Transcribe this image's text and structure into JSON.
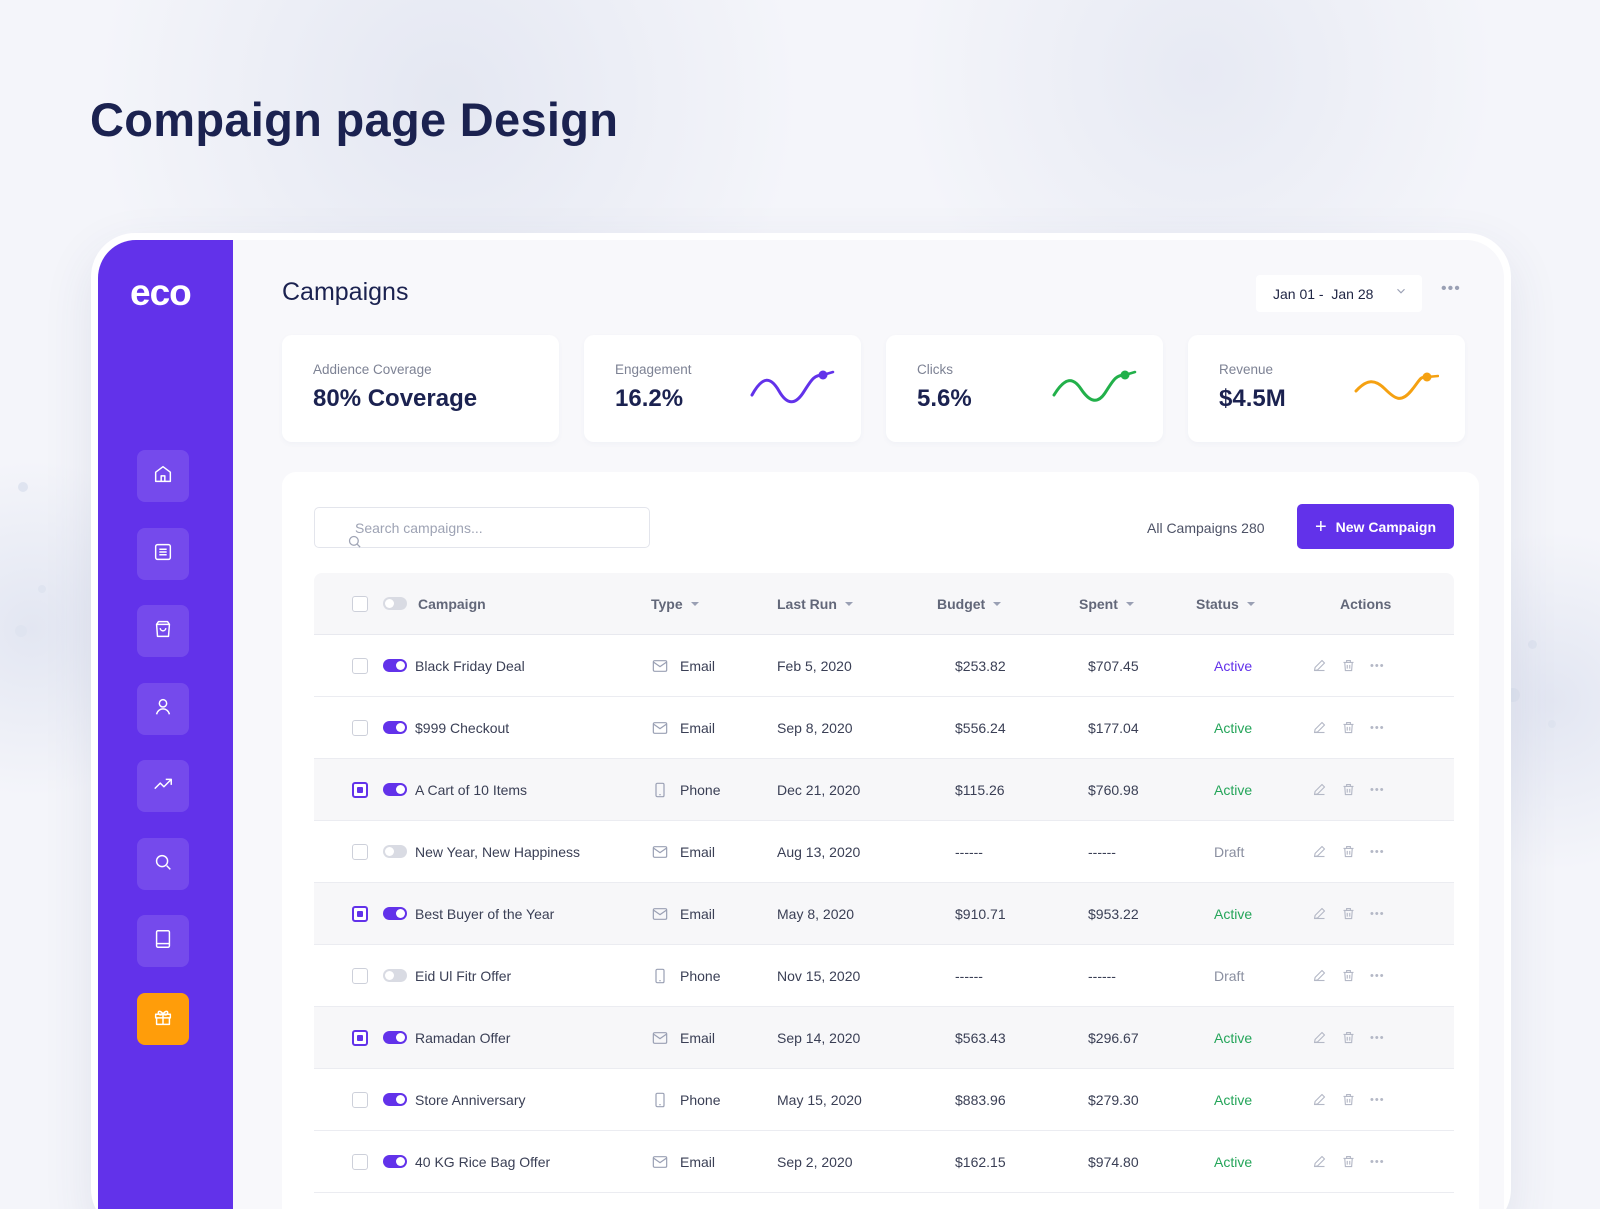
{
  "heading": "Compaign page Design",
  "sidebar": {
    "logo": "eco",
    "items": [
      {
        "name": "home",
        "icon": "home-icon"
      },
      {
        "name": "documents",
        "icon": "document-icon"
      },
      {
        "name": "shop",
        "icon": "shopping-bag-icon"
      },
      {
        "name": "users",
        "icon": "user-icon"
      },
      {
        "name": "analytics",
        "icon": "trending-up-icon"
      },
      {
        "name": "search",
        "icon": "search-icon"
      },
      {
        "name": "book",
        "icon": "book-icon"
      },
      {
        "name": "campaigns",
        "icon": "gift-icon",
        "active": true
      }
    ]
  },
  "main": {
    "title": "Campaigns",
    "date_range": "Jan 01 -  Jan 28",
    "stats": [
      {
        "label": "Addience Coverage",
        "value": "80% Coverage"
      },
      {
        "label": "Engagement",
        "value": "16.2%",
        "color": "#6232ea"
      },
      {
        "label": "Clicks",
        "value": "5.6%",
        "color": "#22b04a"
      },
      {
        "label": "Revenue",
        "value": "$4.5M",
        "color": "#f5a111"
      }
    ],
    "search": {
      "placeholder": "Search campaigns..."
    },
    "all_campaigns": "All Campaigns 280",
    "new_button": "New Campaign",
    "table": {
      "columns": [
        "Campaign",
        "Type",
        "Last Run",
        "Budget",
        "Spent",
        "Status",
        "Actions"
      ],
      "rows": [
        {
          "name": "Black Friday Deal",
          "type": "Email",
          "last_run": "Feb 5, 2020",
          "budget": "$253.82",
          "spent": "$707.45",
          "status": "Active",
          "checked": false,
          "enabled": true,
          "selected": false
        },
        {
          "name": "$999 Checkout",
          "type": "Email",
          "last_run": "Sep 8, 2020",
          "budget": "$556.24",
          "spent": "$177.04",
          "status": "Active",
          "checked": false,
          "enabled": true,
          "selected": false
        },
        {
          "name": "A Cart of 10 Items",
          "type": "Phone",
          "last_run": "Dec 21, 2020",
          "budget": "$115.26",
          "spent": "$760.98",
          "status": "Active",
          "checked": true,
          "enabled": true,
          "selected": true
        },
        {
          "name": "New Year, New Happiness",
          "type": "Email",
          "last_run": "Aug 13, 2020",
          "budget": "------",
          "spent": "------",
          "status": "Draft",
          "checked": false,
          "enabled": false,
          "selected": false
        },
        {
          "name": "Best Buyer of the Year",
          "type": "Email",
          "last_run": "May 8, 2020",
          "budget": "$910.71",
          "spent": "$953.22",
          "status": "Active",
          "checked": true,
          "enabled": true,
          "selected": true
        },
        {
          "name": "Eid Ul Fitr Offer",
          "type": "Phone",
          "last_run": "Nov 15, 2020",
          "budget": "------",
          "spent": "------",
          "status": "Draft",
          "checked": false,
          "enabled": false,
          "selected": false
        },
        {
          "name": "Ramadan Offer",
          "type": "Email",
          "last_run": "Sep 14, 2020",
          "budget": "$563.43",
          "spent": "$296.67",
          "status": "Active",
          "checked": true,
          "enabled": true,
          "selected": true
        },
        {
          "name": "Store Anniversary",
          "type": "Phone",
          "last_run": "May 15, 2020",
          "budget": "$883.96",
          "spent": "$279.30",
          "status": "Active",
          "checked": false,
          "enabled": true,
          "selected": false
        },
        {
          "name": "40 KG Rice Bag Offer",
          "type": "Email",
          "last_run": "Sep 2, 2020",
          "budget": "$162.15",
          "spent": "$974.80",
          "status": "Active",
          "checked": false,
          "enabled": true,
          "selected": false
        }
      ]
    }
  },
  "colors": {
    "accent": "#6232ea",
    "active_nav": "#ff9d0a",
    "status_active": "#25a55a",
    "status_draft": "#8a8fa0"
  }
}
